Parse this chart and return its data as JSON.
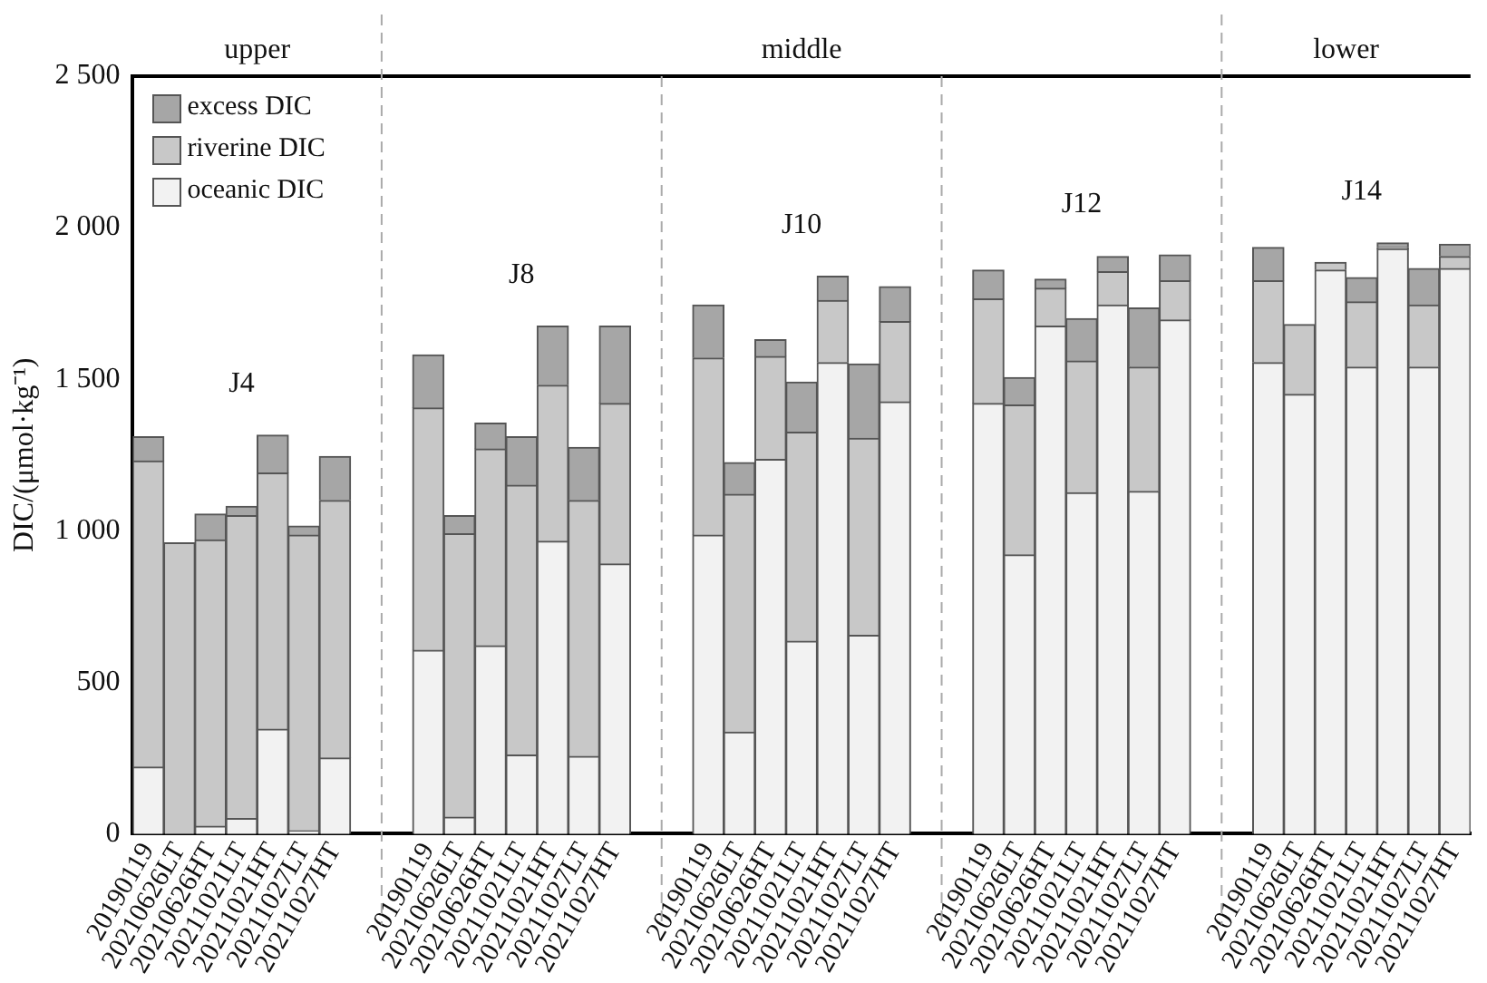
{
  "chart_data": {
    "type": "bar",
    "stacked": true,
    "ylabel": "DIC/(μmol·kg⁻¹)",
    "categories": [
      "20190119",
      "20210626LT",
      "20210626HT",
      "20211021LT",
      "20211021HT",
      "20211027LT",
      "20211027HT",
      null,
      null,
      "20190119",
      "20210626LT",
      "20210626HT",
      "20211021LT",
      "20211021HT",
      "20211027LT",
      "20211027HT",
      null,
      null,
      "20190119",
      "20210626LT",
      "20210626HT",
      "20211021LT",
      "20211021HT",
      "20211027LT",
      "20211027HT",
      null,
      null,
      "20190119",
      "20210626LT",
      "20210626HT",
      "20211021LT",
      "20211021HT",
      "20211027LT",
      "20211027HT",
      null,
      null,
      "20190119",
      "20210626LT",
      "20210626HT",
      "20211021LT",
      "20211021HT",
      "20211027LT",
      "20211027HT"
    ],
    "series": [
      {
        "name": "oceanic DIC",
        "color": "#f2f2f2",
        "values": [
          220,
          0,
          25,
          50,
          345,
          10,
          250,
          null,
          null,
          605,
          55,
          620,
          260,
          965,
          255,
          890,
          null,
          null,
          985,
          335,
          1235,
          635,
          1555,
          655,
          1425,
          null,
          null,
          1420,
          920,
          1675,
          1125,
          1745,
          1130,
          1695,
          null,
          null,
          1555,
          1450,
          1860,
          1540,
          1930,
          1540,
          1865
        ]
      },
      {
        "name": "riverine DIC",
        "color": "#c8c8c8",
        "values": [
          1010,
          960,
          945,
          1000,
          845,
          975,
          850,
          null,
          null,
          800,
          935,
          650,
          890,
          515,
          845,
          530,
          null,
          null,
          585,
          785,
          340,
          690,
          205,
          650,
          265,
          null,
          null,
          345,
          495,
          125,
          435,
          110,
          410,
          130,
          null,
          null,
          270,
          230,
          25,
          215,
          5,
          205,
          40
        ]
      },
      {
        "name": "excess DIC",
        "color": "#a6a6a6",
        "values": [
          80,
          0,
          85,
          30,
          125,
          30,
          145,
          null,
          null,
          175,
          60,
          85,
          160,
          195,
          175,
          255,
          null,
          null,
          175,
          105,
          55,
          165,
          80,
          245,
          115,
          null,
          null,
          95,
          90,
          30,
          140,
          50,
          195,
          85,
          null,
          null,
          110,
          0,
          0,
          80,
          15,
          120,
          40
        ]
      }
    ],
    "ylim": [
      0,
      2500
    ],
    "yticks": [
      0,
      500,
      {
        "value": 1000,
        "label": "1 000"
      },
      {
        "value": 1500,
        "label": "1 500"
      },
      {
        "value": 2000,
        "label": "2 000"
      },
      {
        "value": 2500,
        "label": "2 500"
      }
    ],
    "grid": false,
    "legend": "top left",
    "annotations": [
      "upper",
      "middle",
      "lower",
      "J4",
      "J8",
      "J10",
      "J12",
      "J14"
    ]
  }
}
